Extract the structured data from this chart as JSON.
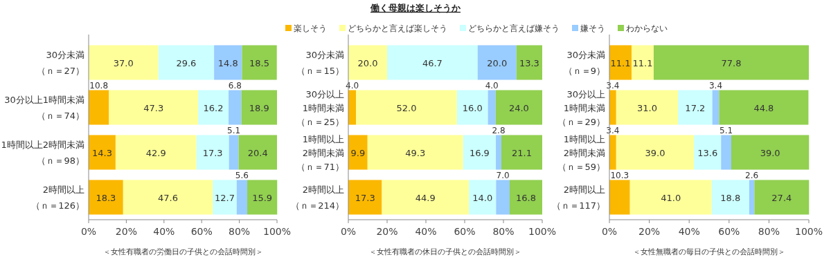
{
  "chart_data": [
    {
      "type": "bar",
      "orientation": "horizontal",
      "stacked": true,
      "xlabel": "＜女性有職者の労働日の子供との会話時間別＞",
      "categories": [
        "30分未満（ｎ＝27）",
        "30分以上1時間未満（ｎ＝74）",
        "1時間以上2時間未満（ｎ＝98）",
        "2時間以上（ｎ＝126）"
      ],
      "series": [
        {
          "color": "#fbb800",
          "values": [
            0,
            10.8,
            14.3,
            18.3
          ],
          "value_labels": [
            null,
            "10.8",
            "14.3",
            "18.3"
          ]
        },
        {
          "color": "#ffff99",
          "values": [
            37.0,
            47.3,
            42.9,
            47.6
          ],
          "value_labels": [
            "37.0",
            "47.3",
            "42.9",
            "47.6"
          ]
        },
        {
          "color": "#ccffff",
          "values": [
            29.6,
            16.2,
            17.3,
            12.7
          ],
          "value_labels": [
            "29.6",
            "16.2",
            "17.3",
            "12.7"
          ]
        },
        {
          "color": "#99ccff",
          "values": [
            14.8,
            6.8,
            5.1,
            5.6
          ],
          "value_labels": [
            "14.8",
            "6.8",
            "5.1",
            "5.6"
          ]
        },
        {
          "color": "#92d050",
          "values": [
            18.5,
            18.9,
            20.4,
            15.9
          ],
          "value_labels": [
            "18.5",
            "18.9",
            "20.4",
            "15.9"
          ]
        }
      ],
      "xlim": [
        0,
        100
      ],
      "xticks": [
        {
          "value": 0,
          "label": "0%"
        },
        {
          "value": 20,
          "label": "20%"
        },
        {
          "value": 40,
          "label": "40%"
        },
        {
          "value": 60,
          "label": "60%"
        },
        {
          "value": 80,
          "label": "80%"
        },
        {
          "value": 100,
          "label": "100%"
        }
      ]
    },
    {
      "type": "bar",
      "orientation": "horizontal",
      "stacked": true,
      "title": "働く母親は楽しそうか",
      "legend": "top",
      "xlabel": "＜女性有職者の休日の子供との会話時間別＞",
      "categories": [
        "30分未満（ｎ＝15）",
        "30分以上1時間未満（ｎ＝25）",
        "1時間以上2時間未満（ｎ＝71）",
        "2時間以上（ｎ＝214）"
      ],
      "series": [
        {
          "name": "楽しそう",
          "color": "#fbb800",
          "values": [
            0,
            4.0,
            9.9,
            17.3
          ],
          "value_labels": [
            null,
            "4.0",
            "9.9",
            "17.3"
          ]
        },
        {
          "name": "どちらかと言えば楽しそう",
          "color": "#ffff99",
          "values": [
            20.0,
            52.0,
            49.3,
            44.9
          ],
          "value_labels": [
            "20.0",
            "52.0",
            "49.3",
            "44.9"
          ]
        },
        {
          "name": "どちらかと言えば嫌そう",
          "color": "#ccffff",
          "values": [
            46.7,
            16.0,
            16.9,
            14.0
          ],
          "value_labels": [
            "46.7",
            "16.0",
            "16.9",
            "14.0"
          ]
        },
        {
          "name": "嫌そう",
          "color": "#99ccff",
          "values": [
            20.0,
            4.0,
            2.8,
            7.0
          ],
          "value_labels": [
            "20.0",
            "4.0",
            "2.8",
            "7.0"
          ]
        },
        {
          "name": "わからない",
          "color": "#92d050",
          "values": [
            13.3,
            24.0,
            21.1,
            16.8
          ],
          "value_labels": [
            "13.3",
            "24.0",
            "21.1",
            "16.8"
          ]
        }
      ],
      "xlim": [
        0,
        100
      ],
      "xticks": [
        {
          "value": 0,
          "label": "0%"
        },
        {
          "value": 20,
          "label": "20%"
        },
        {
          "value": 40,
          "label": "40%"
        },
        {
          "value": 60,
          "label": "60%"
        },
        {
          "value": 80,
          "label": "80%"
        },
        {
          "value": 100,
          "label": "100%"
        }
      ]
    },
    {
      "type": "bar",
      "orientation": "horizontal",
      "stacked": true,
      "xlabel": "＜女性無職者の毎日の子供との会話時間別＞",
      "categories": [
        "30分未満（ｎ＝9）",
        "30分以上1時間未満（ｎ＝29）",
        "1時間以上2時間未満（ｎ＝59）",
        "2時間以上（ｎ＝117）"
      ],
      "series": [
        {
          "color": "#fbb800",
          "values": [
            11.1,
            3.4,
            3.4,
            10.3
          ],
          "value_labels": [
            "11.1",
            "3.4",
            "3.4",
            "10.3"
          ]
        },
        {
          "color": "#ffff99",
          "values": [
            11.1,
            31.0,
            39.0,
            41.0
          ],
          "value_labels": [
            "11.1",
            "31.0",
            "39.0",
            "41.0"
          ]
        },
        {
          "color": "#ccffff",
          "values": [
            0,
            17.2,
            13.6,
            18.8
          ],
          "value_labels": [
            null,
            "17.2",
            "13.6",
            "18.8"
          ]
        },
        {
          "color": "#99ccff",
          "values": [
            0,
            3.4,
            5.1,
            2.6
          ],
          "value_labels": [
            null,
            "3.4",
            "5.1",
            "2.6"
          ]
        },
        {
          "color": "#92d050",
          "values": [
            77.8,
            44.8,
            39.0,
            27.4
          ],
          "value_labels": [
            "77.8",
            "44.8",
            "39.0",
            "27.4"
          ]
        }
      ],
      "xlim": [
        0,
        100
      ],
      "xticks": [
        {
          "value": 0,
          "label": "0%"
        },
        {
          "value": 20,
          "label": "20%"
        },
        {
          "value": 40,
          "label": "40%"
        },
        {
          "value": 60,
          "label": "60%"
        },
        {
          "value": 80,
          "label": "80%"
        },
        {
          "value": 100,
          "label": "100%"
        }
      ]
    }
  ]
}
